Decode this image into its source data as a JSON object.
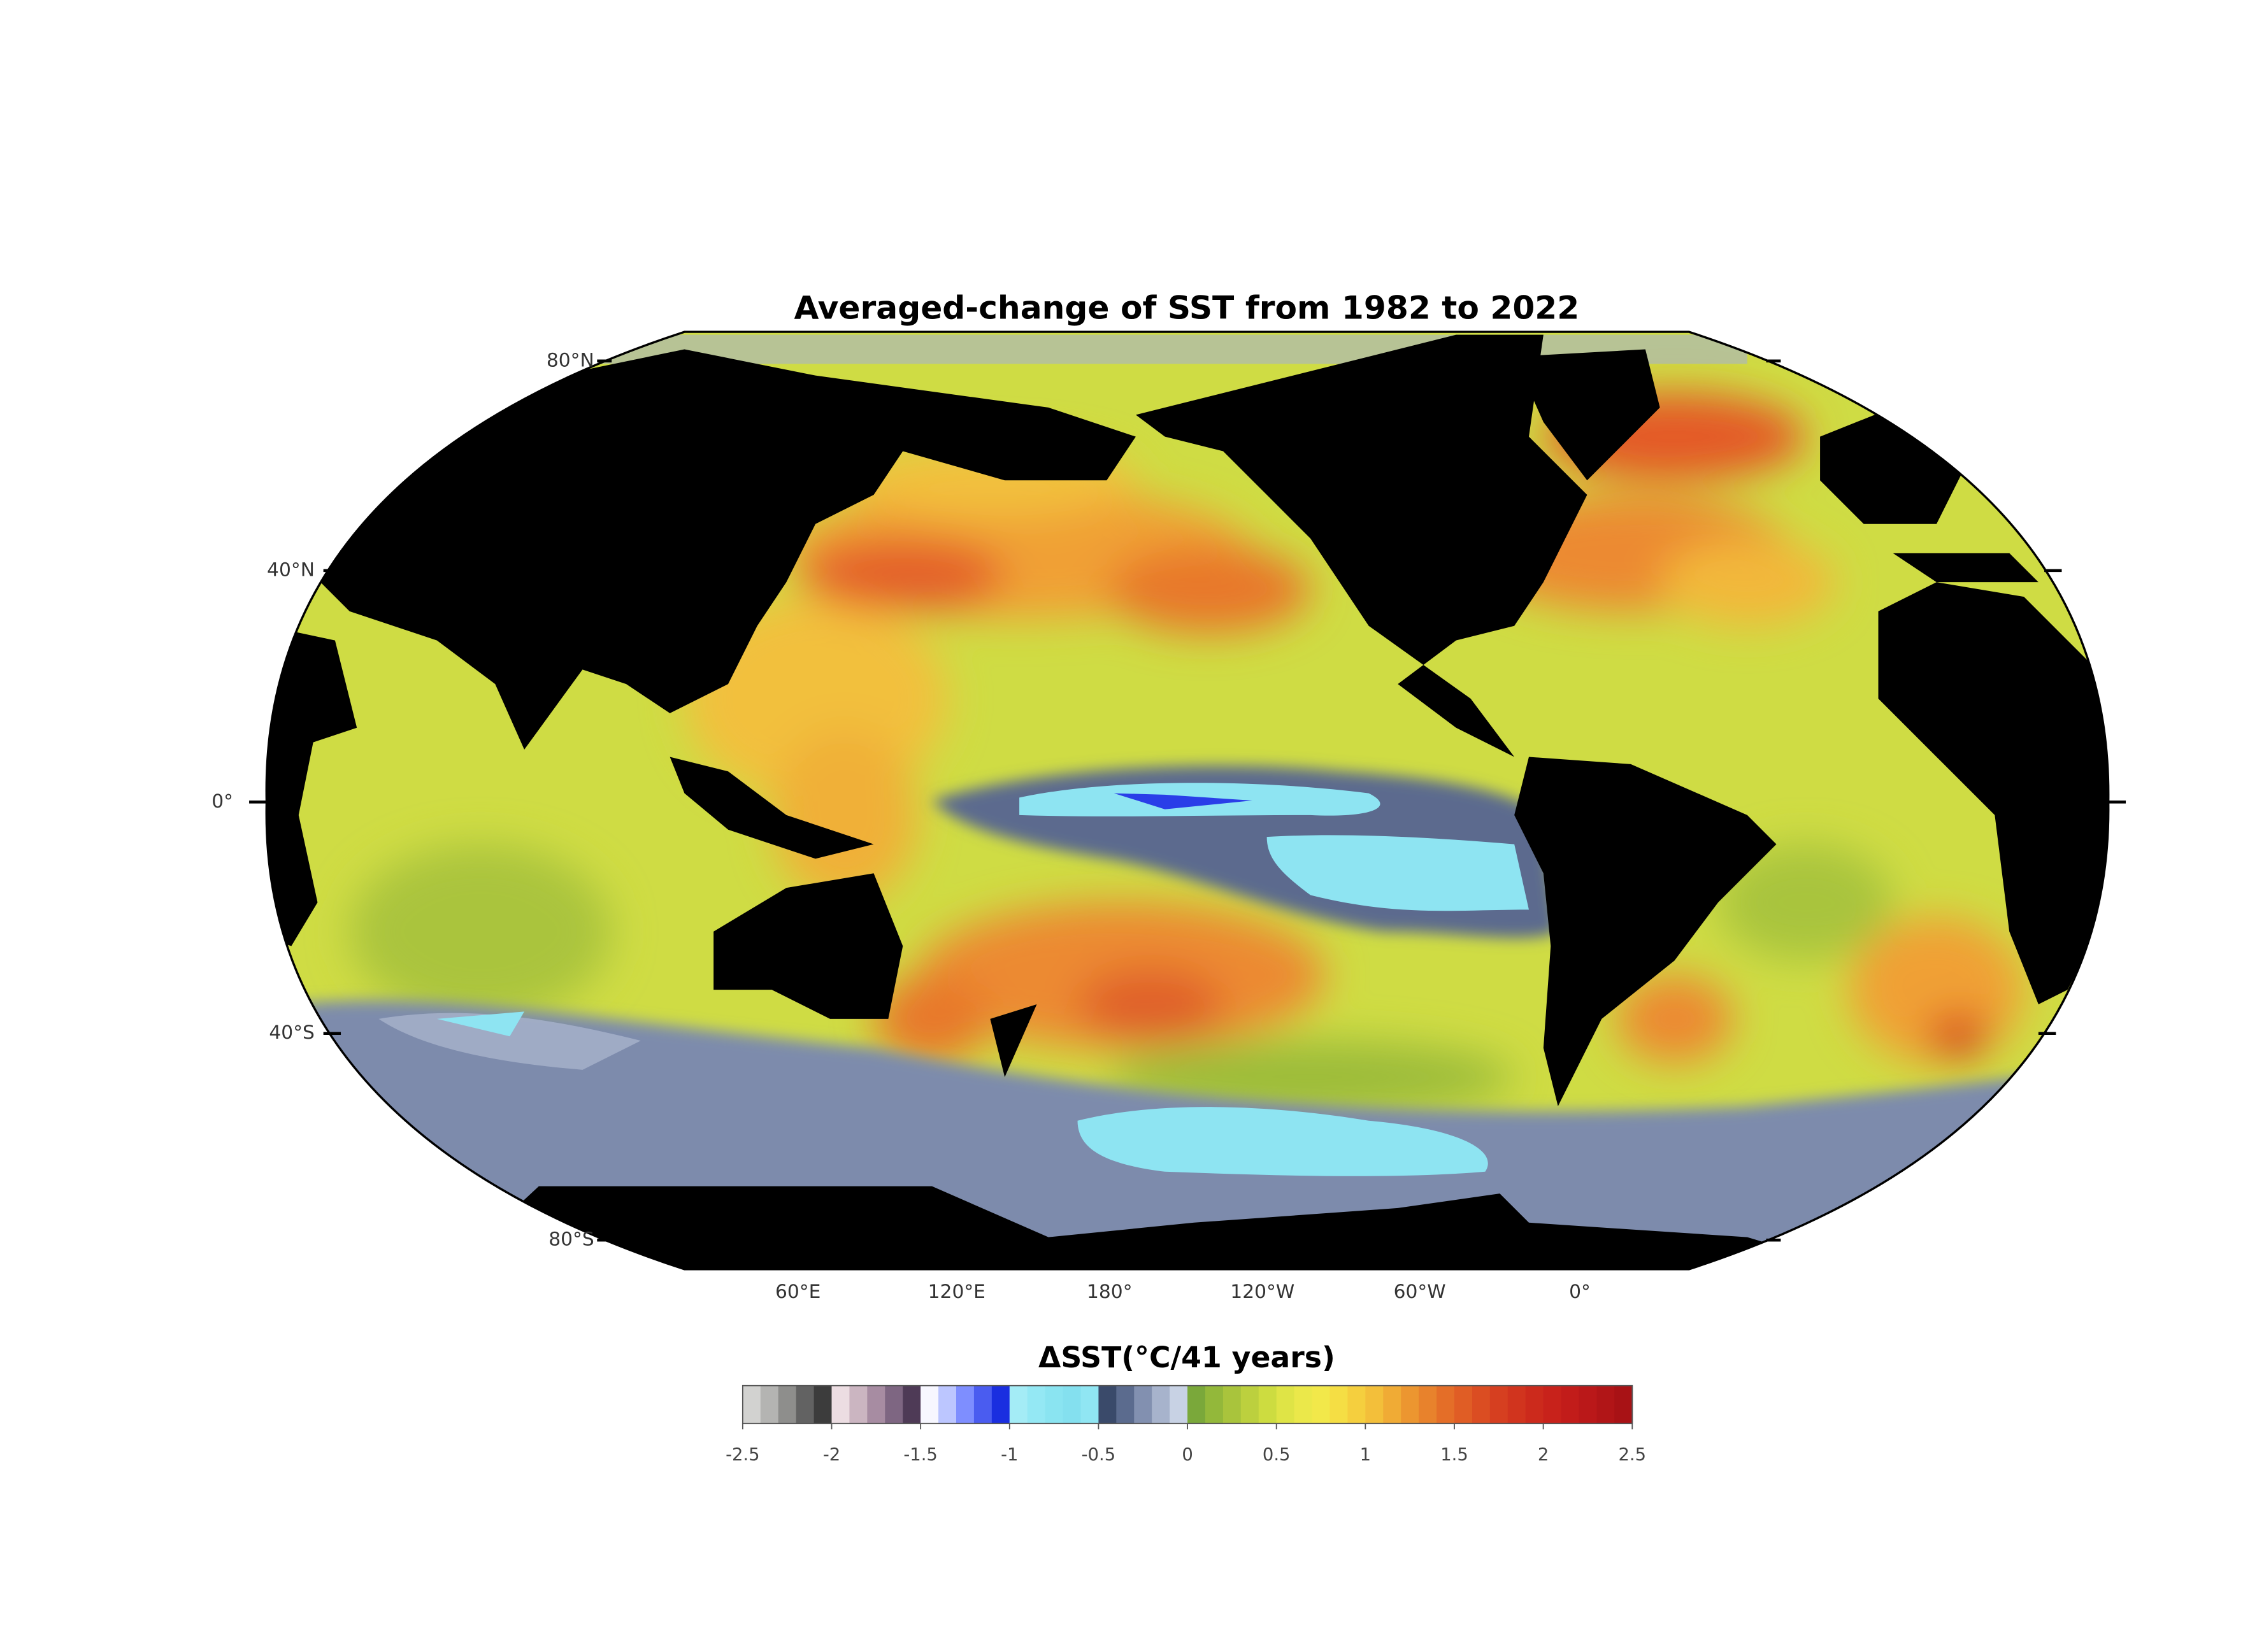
{
  "title": "Averaged-change of SST from 1982 to 2022",
  "map": {
    "lat_labels": [
      "80°N",
      "40°N",
      "0°",
      "40°S",
      "80°S"
    ],
    "lon_labels": [
      "60°E",
      "120°E",
      "180°",
      "120°W",
      "60°W",
      "0°"
    ]
  },
  "colorbar": {
    "label": "ΔSST(°C/41 years)",
    "lim": [
      -2.5,
      2.5
    ],
    "ticks": [
      -2.5,
      -2,
      -1.5,
      -1,
      -0.5,
      0,
      0.5,
      1,
      1.5,
      2,
      2.5
    ],
    "colors": [
      "#d2d2d0",
      "#b4b4b2",
      "#8e8e8c",
      "#626262",
      "#3c3c3c",
      "#ecdde2",
      "#cbb5c1",
      "#a78ca2",
      "#7e6682",
      "#4e3a56",
      "#f7f7ff",
      "#bcc6ff",
      "#7e8eff",
      "#4a5cf0",
      "#1a2ee0",
      "#a4ecf6",
      "#94e8f4",
      "#8ae4f1",
      "#84e0ef",
      "#90e6f3",
      "#3a4a6a",
      "#5b6b8e",
      "#8290b0",
      "#a7b3cc",
      "#c8d2e4",
      "#7aa83a",
      "#93b83a",
      "#a9c43c",
      "#bcd03e",
      "#cddc40",
      "#dfe446",
      "#ebe84a",
      "#f2e84a",
      "#f5de44",
      "#f5cf3e",
      "#f3bf3a",
      "#f0ab35",
      "#ec9630",
      "#e8822c",
      "#e46e28",
      "#e05d25",
      "#db4d22",
      "#d63f20",
      "#d1341e",
      "#cc2a1c",
      "#c8221b",
      "#c21c1a",
      "#ba1819",
      "#b11517",
      "#a81215"
    ]
  }
}
